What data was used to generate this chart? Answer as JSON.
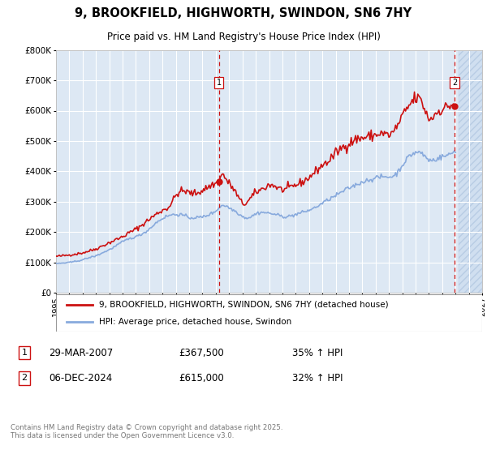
{
  "title": "9, BROOKFIELD, HIGHWORTH, SWINDON, SN6 7HY",
  "subtitle": "Price paid vs. HM Land Registry's House Price Index (HPI)",
  "bg_color": "#dde8f4",
  "hatch_color": "#ccd8ea",
  "grid_color": "#ffffff",
  "ylim": [
    0,
    800000
  ],
  "xlim_start": 1995.0,
  "xlim_end": 2027.0,
  "transaction1": {
    "date_num": 2007.24,
    "price": 367500,
    "label": "1"
  },
  "transaction2": {
    "date_num": 2024.93,
    "price": 615000,
    "label": "2"
  },
  "annotation1": {
    "date": "29-MAR-2007",
    "price": "£367,500",
    "pct": "35% ↑ HPI"
  },
  "annotation2": {
    "date": "06-DEC-2024",
    "price": "£615,000",
    "pct": "32% ↑ HPI"
  },
  "legend_property": "9, BROOKFIELD, HIGHWORTH, SWINDON, SN6 7HY (detached house)",
  "legend_hpi": "HPI: Average price, detached house, Swindon",
  "footer": "Contains HM Land Registry data © Crown copyright and database right 2025.\nThis data is licensed under the Open Government Licence v3.0.",
  "property_color": "#cc1111",
  "hpi_color": "#88aadd",
  "vline_color": "#cc1111",
  "hatch_start": 2025.25
}
